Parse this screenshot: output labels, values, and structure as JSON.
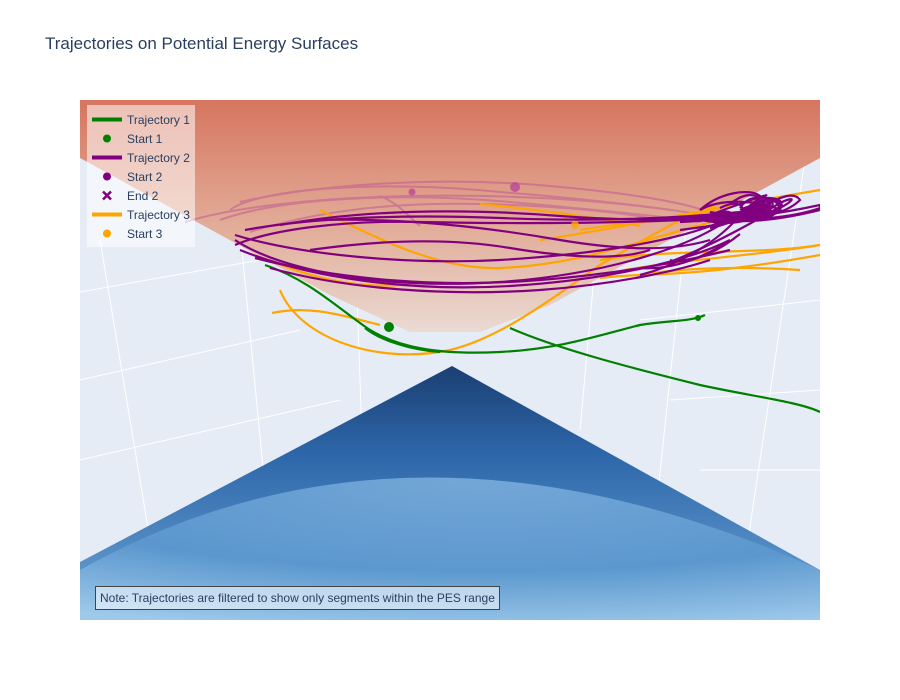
{
  "title": "Trajectories on Potential Energy Surfaces",
  "note": "Note: Trajectories are filtered to show only segments within the PES range",
  "chart_data": {
    "type": "scatter3d",
    "surfaces": [
      {
        "name": "upper-surface",
        "shape": "inverted-cone",
        "colors": [
          "#d6755f",
          "#e8bfae",
          "#eadad3"
        ]
      },
      {
        "name": "lower-surface",
        "shape": "cone",
        "colors": [
          "#1b3f72",
          "#3a7cbf",
          "#9fcbea"
        ]
      }
    ],
    "legend": [
      {
        "label": "Trajectory 1",
        "symbol": "line",
        "color": "#008000"
      },
      {
        "label": "Start 1",
        "symbol": "circle",
        "color": "#008000"
      },
      {
        "label": "Trajectory 2",
        "symbol": "line",
        "color": "#800080"
      },
      {
        "label": "Start 2",
        "symbol": "circle",
        "color": "#800080"
      },
      {
        "label": "End 2",
        "symbol": "x",
        "color": "#800080"
      },
      {
        "label": "Trajectory 3",
        "symbol": "line",
        "color": "#ffa500"
      },
      {
        "label": "Start 3",
        "symbol": "circle",
        "color": "#ffa500"
      }
    ],
    "legend_position": "top-left",
    "background": "#e5ecf6",
    "grid": true
  }
}
